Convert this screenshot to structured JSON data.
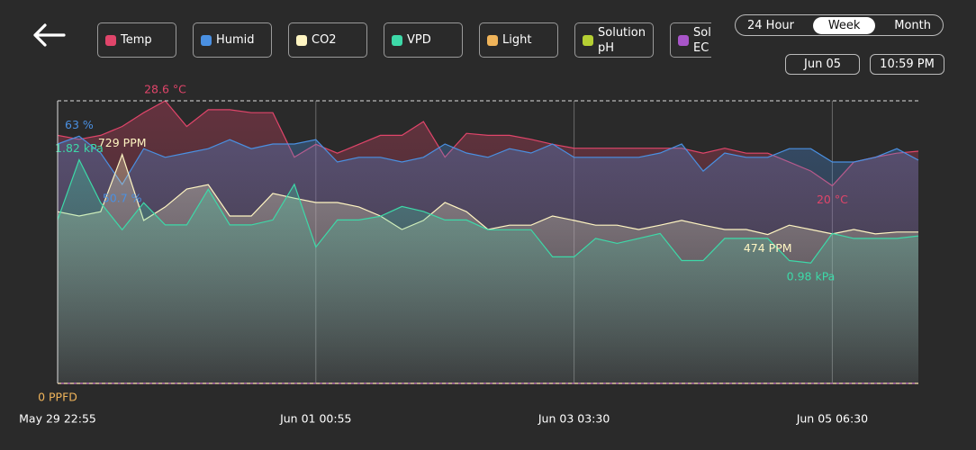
{
  "ranges": {
    "options": [
      "24 Hour",
      "Week",
      "Month"
    ],
    "selected": 1
  },
  "date": "Jun 05",
  "time": "10:59 PM",
  "chart_data": {
    "type": "line",
    "area": true,
    "categories": [
      "May 29 22:55",
      null,
      null,
      null,
      null,
      null,
      null,
      null,
      null,
      null,
      null,
      null,
      "Jun 01 00:55",
      null,
      null,
      null,
      null,
      null,
      null,
      null,
      null,
      null,
      null,
      null,
      "Jun 03 03:30",
      null,
      null,
      null,
      null,
      null,
      null,
      null,
      null,
      null,
      null,
      null,
      "Jun 05 06:30",
      null,
      null,
      null,
      null
    ],
    "series": [
      {
        "name": "Temp",
        "color": "#e0456a",
        "ylim": [
          0,
          28.6
        ],
        "max_label": "28.6 °C",
        "min_label": "20 °C",
        "values": [
          25.1,
          24.7,
          25.1,
          26.0,
          27.4,
          28.6,
          26.0,
          27.7,
          27.7,
          27.4,
          27.4,
          22.9,
          24.2,
          23.3,
          24.2,
          25.1,
          25.1,
          26.5,
          22.9,
          25.3,
          25.1,
          25.1,
          24.7,
          24.2,
          23.8,
          23.8,
          23.8,
          23.8,
          23.8,
          23.8,
          23.3,
          23.8,
          23.3,
          23.3,
          22.4,
          21.5,
          20.0,
          22.4,
          22.9,
          23.3,
          23.5
        ]
      },
      {
        "name": "Humid",
        "color": "#4a90e2",
        "ylim": [
          0,
          72
        ],
        "max_label": "63 %",
        "min_label": "50.7 %",
        "values": [
          61.0,
          63.0,
          58.7,
          50.7,
          59.8,
          57.6,
          58.7,
          59.8,
          62.1,
          59.8,
          61.0,
          61.0,
          62.1,
          56.4,
          57.6,
          57.6,
          56.4,
          57.6,
          61.0,
          58.7,
          57.6,
          59.8,
          58.7,
          61.0,
          57.6,
          57.6,
          57.6,
          57.6,
          58.7,
          61.0,
          54.1,
          58.7,
          57.6,
          57.6,
          59.8,
          59.8,
          56.4,
          56.4,
          57.6,
          59.8,
          56.9
        ]
      },
      {
        "name": "CO2",
        "color": "#fff5c2",
        "ylim": [
          0,
          900
        ],
        "max_label": "729 PPM",
        "min_label": "474 PPM",
        "values": [
          547,
          533,
          547,
          729,
          519,
          562,
          619,
          633,
          533,
          533,
          605,
          590,
          576,
          576,
          562,
          533,
          490,
          519,
          576,
          547,
          490,
          504,
          504,
          533,
          519,
          504,
          504,
          490,
          504,
          519,
          504,
          490,
          490,
          474,
          504,
          490,
          476,
          490,
          476,
          482,
          482
        ]
      },
      {
        "name": "VPD",
        "color": "#3dd9a8",
        "ylim": [
          0,
          2.3
        ],
        "max_label": "1.82 kPa",
        "min_label": "0.98 kPa",
        "values": [
          1.33,
          1.82,
          1.47,
          1.25,
          1.47,
          1.29,
          1.29,
          1.58,
          1.29,
          1.29,
          1.33,
          1.62,
          1.11,
          1.33,
          1.33,
          1.36,
          1.44,
          1.4,
          1.33,
          1.33,
          1.25,
          1.25,
          1.25,
          1.03,
          1.03,
          1.18,
          1.14,
          1.18,
          1.22,
          1.0,
          1.0,
          1.18,
          1.18,
          1.18,
          1.0,
          0.98,
          1.22,
          1.18,
          1.18,
          1.18,
          1.2
        ]
      },
      {
        "name": "Light",
        "color": "#f0b45a",
        "ylim": [
          0,
          100
        ],
        "min_label": "0 PPFD",
        "values": [
          0,
          0,
          0,
          0,
          0,
          0,
          0,
          0,
          0,
          0,
          0,
          0,
          0,
          0,
          0,
          0,
          0,
          0,
          0,
          0,
          0,
          0,
          0,
          0,
          0,
          0,
          0,
          0,
          0,
          0,
          0,
          0,
          0,
          0,
          0,
          0,
          0,
          0,
          0,
          0,
          0
        ]
      },
      {
        "name": "Solution pH",
        "color": "#b5cf33",
        "ylim": [
          0,
          14
        ],
        "values": [
          0,
          0,
          0,
          0,
          0,
          0,
          0,
          0,
          0,
          0,
          0,
          0,
          0,
          0,
          0,
          0,
          0,
          0,
          0,
          0,
          0,
          0,
          0,
          0,
          0,
          0,
          0,
          0,
          0,
          0,
          0,
          0,
          0,
          0,
          0,
          0,
          0,
          0,
          0,
          0,
          0
        ]
      },
      {
        "name": "Solution EC",
        "color": "#a855c9",
        "ylim": [
          0,
          5
        ],
        "values": [
          0,
          0,
          0,
          0,
          0,
          0,
          0,
          0,
          0,
          0,
          0,
          0,
          0,
          0,
          0,
          0,
          0,
          0,
          0,
          0,
          0,
          0,
          0,
          0,
          0,
          0,
          0,
          0,
          0,
          0,
          0,
          0,
          0,
          0,
          0,
          0,
          0,
          0,
          0,
          0,
          0
        ]
      }
    ]
  }
}
